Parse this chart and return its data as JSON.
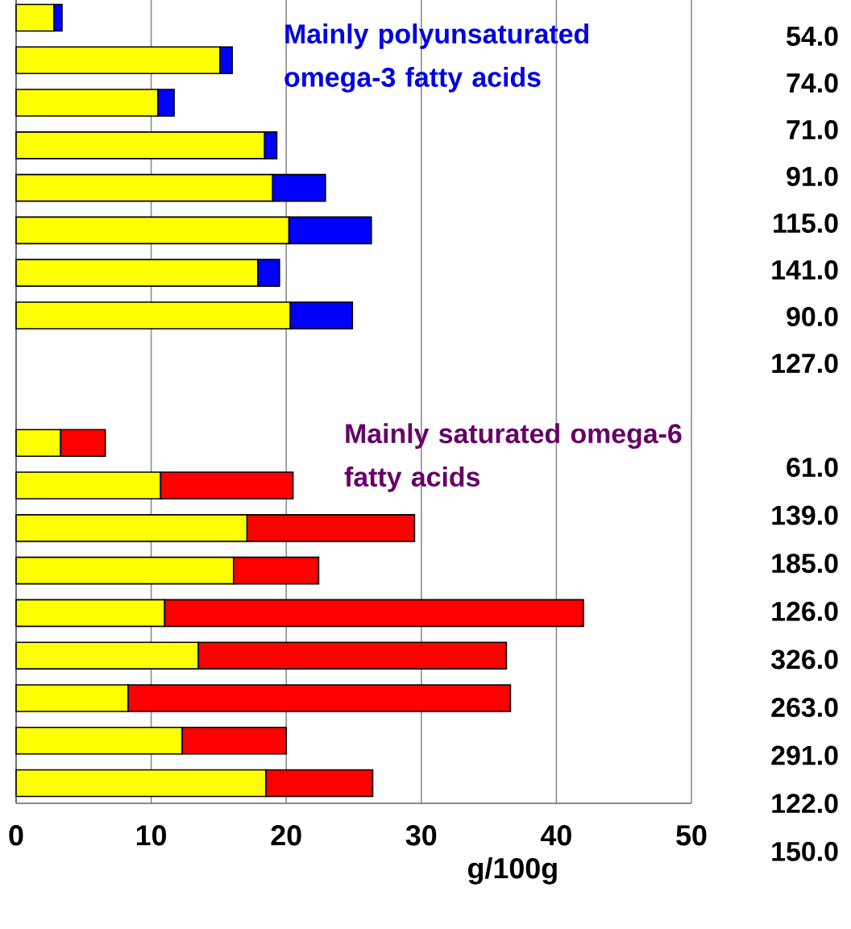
{
  "chart_data": {
    "type": "bar",
    "orientation": "horizontal",
    "stacked": true,
    "grid": "x",
    "xlabel": "g/100g",
    "xlim": [
      0,
      50
    ],
    "xticks": [
      0,
      10,
      20,
      30,
      40,
      50
    ],
    "categories": [
      null,
      null,
      null,
      null,
      null,
      null,
      null,
      null,
      null,
      null,
      null,
      null,
      null,
      null,
      null,
      null,
      null,
      null,
      null
    ],
    "series": [
      {
        "color": "#ffff00",
        "values": [
          2.8,
          15.1,
          10.5,
          18.4,
          19.0,
          20.2,
          17.9,
          20.3,
          null,
          null,
          3.3,
          10.7,
          17.1,
          16.1,
          11.0,
          13.5,
          8.3,
          12.3,
          18.5
        ]
      },
      {
        "color": "#0000ff",
        "values": [
          0.6,
          0.9,
          1.2,
          0.9,
          3.9,
          6.1,
          1.6,
          4.6,
          null,
          null,
          null,
          null,
          null,
          null,
          null,
          null,
          null,
          null,
          null
        ]
      },
      {
        "color": "#ff0000",
        "values": [
          null,
          null,
          null,
          null,
          null,
          null,
          null,
          null,
          null,
          null,
          3.3,
          9.8,
          12.4,
          6.3,
          31.0,
          22.8,
          28.3,
          7.7,
          7.9
        ]
      }
    ],
    "annotations": [
      "Mainly polyunsaturated omega-3 fatty acids",
      "Mainly saturated omega-6 fatty acids",
      "54.0",
      "74.0",
      "71.0",
      "91.0",
      "115.0",
      "141.0",
      "90.0",
      "127.0",
      "61.0",
      "139.0",
      "185.0",
      "126.0",
      "326.0",
      "263.0",
      "291.0",
      "122.0",
      "150.0"
    ]
  }
}
